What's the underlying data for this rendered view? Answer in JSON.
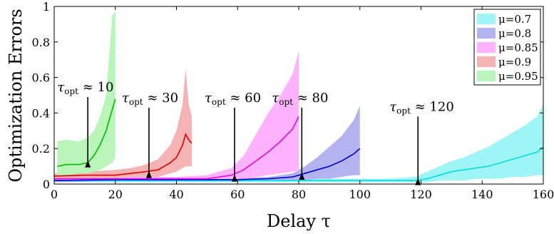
{
  "chart_data": {
    "type": "line",
    "xlabel": "Delay τ",
    "ylabel": "Optimization Errors",
    "xlim": [
      0,
      160
    ],
    "ylim": [
      0,
      1
    ],
    "xticks": [
      0,
      20,
      40,
      60,
      80,
      100,
      120,
      140,
      160
    ],
    "yticks": [
      0,
      0.2,
      0.4,
      0.6,
      0.8,
      1
    ],
    "ytick_labels": [
      "0",
      "0.2",
      "0.4",
      "0.6",
      "0.8",
      "1"
    ],
    "legend_position": "top-right",
    "series": [
      {
        "name": "μ=0.7",
        "color": "#00dddd",
        "fill": "#9ff5f5",
        "x": [
          0,
          20,
          40,
          60,
          80,
          100,
          110,
          118,
          122,
          126,
          130,
          134,
          138,
          142,
          146,
          150,
          154,
          158,
          160
        ],
        "y": [
          0.02,
          0.02,
          0.02,
          0.02,
          0.02,
          0.02,
          0.02,
          0.02,
          0.03,
          0.05,
          0.07,
          0.08,
          0.09,
          0.1,
          0.12,
          0.14,
          0.16,
          0.18,
          0.21
        ],
        "band_upper": [
          0.03,
          0.03,
          0.03,
          0.03,
          0.03,
          0.03,
          0.03,
          0.04,
          0.07,
          0.1,
          0.13,
          0.15,
          0.18,
          0.21,
          0.25,
          0.29,
          0.33,
          0.38,
          0.45
        ],
        "band_lower": [
          0.01,
          0.01,
          0.01,
          0.01,
          0.01,
          0.01,
          0.01,
          0.01,
          0.01,
          0.02,
          0.02,
          0.02,
          0.03,
          0.03,
          0.03,
          0.04,
          0.04,
          0.05,
          0.05
        ]
      },
      {
        "name": "μ=0.8",
        "color": "#0000cc",
        "fill": "#b3b3f0",
        "x": [
          0,
          20,
          40,
          60,
          70,
          78,
          82,
          86,
          90,
          94,
          98,
          100
        ],
        "y": [
          0.02,
          0.025,
          0.025,
          0.025,
          0.03,
          0.04,
          0.06,
          0.08,
          0.1,
          0.13,
          0.17,
          0.2
        ],
        "band_upper": [
          0.03,
          0.03,
          0.03,
          0.035,
          0.04,
          0.06,
          0.1,
          0.15,
          0.21,
          0.27,
          0.36,
          0.44
        ],
        "band_lower": [
          0.01,
          0.015,
          0.015,
          0.015,
          0.02,
          0.02,
          0.02,
          0.03,
          0.03,
          0.04,
          0.05,
          0.05
        ]
      },
      {
        "name": "μ=0.85",
        "color": "#ee00ee",
        "fill": "#ffb3ff",
        "x": [
          0,
          20,
          40,
          50,
          58,
          62,
          66,
          70,
          74,
          78,
          80
        ],
        "y": [
          0.03,
          0.03,
          0.03,
          0.03,
          0.05,
          0.08,
          0.13,
          0.18,
          0.24,
          0.31,
          0.38
        ],
        "band_upper": [
          0.04,
          0.04,
          0.04,
          0.05,
          0.09,
          0.16,
          0.28,
          0.4,
          0.5,
          0.62,
          0.75
        ],
        "band_lower": [
          0.02,
          0.02,
          0.02,
          0.02,
          0.02,
          0.03,
          0.04,
          0.05,
          0.06,
          0.07,
          0.08
        ]
      },
      {
        "name": "μ=0.9",
        "color": "#dd0000",
        "fill": "#f5b3b3",
        "x": [
          0,
          10,
          20,
          25,
          30,
          34,
          36,
          38,
          40,
          42,
          43,
          44,
          45
        ],
        "y": [
          0.045,
          0.05,
          0.05,
          0.06,
          0.07,
          0.08,
          0.1,
          0.12,
          0.15,
          0.22,
          0.28,
          0.25,
          0.23
        ],
        "band_upper": [
          0.06,
          0.07,
          0.08,
          0.09,
          0.11,
          0.14,
          0.18,
          0.22,
          0.3,
          0.45,
          0.65,
          0.45,
          0.38
        ],
        "band_lower": [
          0.02,
          0.03,
          0.03,
          0.04,
          0.04,
          0.04,
          0.05,
          0.06,
          0.07,
          0.09,
          0.1,
          0.1,
          0.1
        ]
      },
      {
        "name": "μ=0.95",
        "color": "#00bb00",
        "fill": "#b9f5b9",
        "x": [
          1,
          4,
          8,
          11,
          13,
          15,
          17,
          19,
          20
        ],
        "y": [
          0.1,
          0.11,
          0.11,
          0.12,
          0.16,
          0.22,
          0.3,
          0.42,
          0.48
        ],
        "band_upper": [
          0.24,
          0.25,
          0.24,
          0.26,
          0.3,
          0.38,
          0.5,
          0.95,
          0.97
        ],
        "band_lower": [
          0.05,
          0.05,
          0.06,
          0.06,
          0.07,
          0.08,
          0.1,
          0.12,
          0.15
        ]
      }
    ],
    "annotations": [
      {
        "label": "τopt ≈ 10",
        "symbol": "τ",
        "sub": "opt",
        "rest": " ≈ 10",
        "x": 11,
        "y_from": 0.49,
        "y_to": 0.13
      },
      {
        "label": "τopt ≈ 30",
        "symbol": "τ",
        "sub": "opt",
        "rest": " ≈ 30",
        "x": 31,
        "y_from": 0.43,
        "y_to": 0.07
      },
      {
        "label": "τopt ≈ 60",
        "symbol": "τ",
        "sub": "opt",
        "rest": " ≈ 60",
        "x": 59,
        "y_from": 0.43,
        "y_to": 0.05
      },
      {
        "label": "τopt ≈ 80",
        "symbol": "τ",
        "sub": "opt",
        "rest": " ≈ 80",
        "x": 81,
        "y_from": 0.43,
        "y_to": 0.06
      },
      {
        "label": "τopt ≈ 120",
        "symbol": "τ",
        "sub": "opt",
        "rest": " ≈ 120",
        "x": 119,
        "y_from": 0.38,
        "y_to": 0.03
      }
    ]
  }
}
